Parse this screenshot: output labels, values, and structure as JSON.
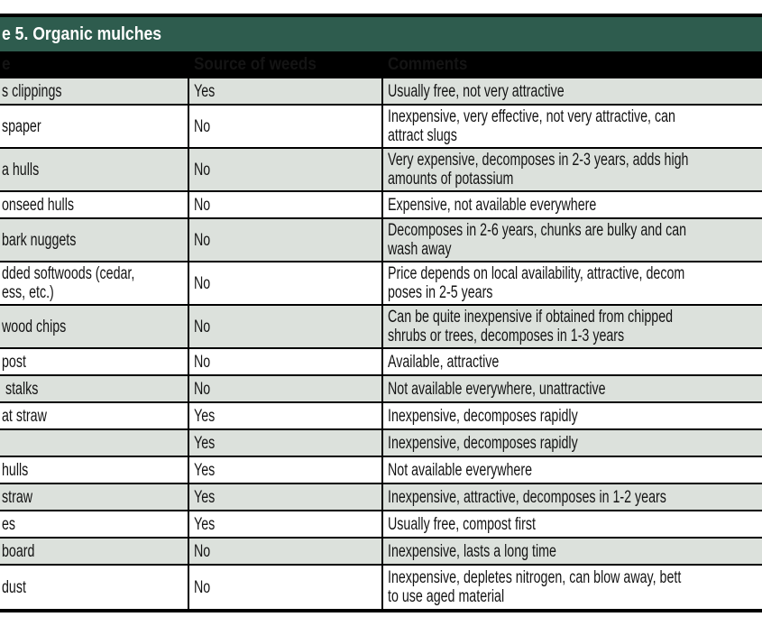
{
  "table": {
    "title": "e 5. Organic mulches",
    "columns": [
      "e",
      "Source of weeds",
      "Comments"
    ],
    "rows": [
      {
        "type": "s clippings",
        "source": "Yes",
        "comments": "Usually free, not very attractive"
      },
      {
        "type": "spaper",
        "source": "No",
        "comments": "Inexpensive, very effective, not very attractive, can\nattract slugs"
      },
      {
        "type": "a hulls",
        "source": "No",
        "comments": "Very expensive, decomposes in 2-3 years, adds high\namounts of potassium"
      },
      {
        "type": "onseed hulls",
        "source": "No",
        "comments": "Expensive, not available everywhere"
      },
      {
        "type": "bark nuggets",
        "source": "No",
        "comments": "Decomposes in 2-6 years, chunks are bulky and can\nwash away"
      },
      {
        "type": "dded softwoods (cedar,\ness, etc.)",
        "source": "No",
        "comments": "Price depends on local availability, attractive, decom\nposes in 2-5 years"
      },
      {
        "type": "wood chips",
        "source": "No",
        "comments": "Can be quite inexpensive if obtained from chipped\nshrubs or trees, decomposes in 1-3 years"
      },
      {
        "type": "post",
        "source": "No",
        "comments": "Available, attractive"
      },
      {
        "type": " stalks",
        "source": "No",
        "comments": "Not available everywhere, unattractive"
      },
      {
        "type": "at straw",
        "source": "Yes",
        "comments": "Inexpensive, decomposes rapidly"
      },
      {
        "type": "",
        "source": "Yes",
        "comments": "Inexpensive, decomposes rapidly"
      },
      {
        "type": "hulls",
        "source": "Yes",
        "comments": "Not available everywhere"
      },
      {
        "type": "straw",
        "source": "Yes",
        "comments": "Inexpensive, attractive, decomposes in 1-2 years"
      },
      {
        "type": "es",
        "source": "Yes",
        "comments": "Usually free, compost first"
      },
      {
        "type": "board",
        "source": "No",
        "comments": "Inexpensive, lasts a long time"
      },
      {
        "type": "dust",
        "source": "No",
        "comments": "Inexpensive, depletes nitrogen, can blow away, bett\nto use aged material"
      }
    ]
  },
  "colors": {
    "title_bar_bg": "#2e5c4e",
    "header_row_bg": "#000000",
    "shaded_row_bg": "#dce1dc",
    "border": "#000000",
    "text": "#141414"
  }
}
